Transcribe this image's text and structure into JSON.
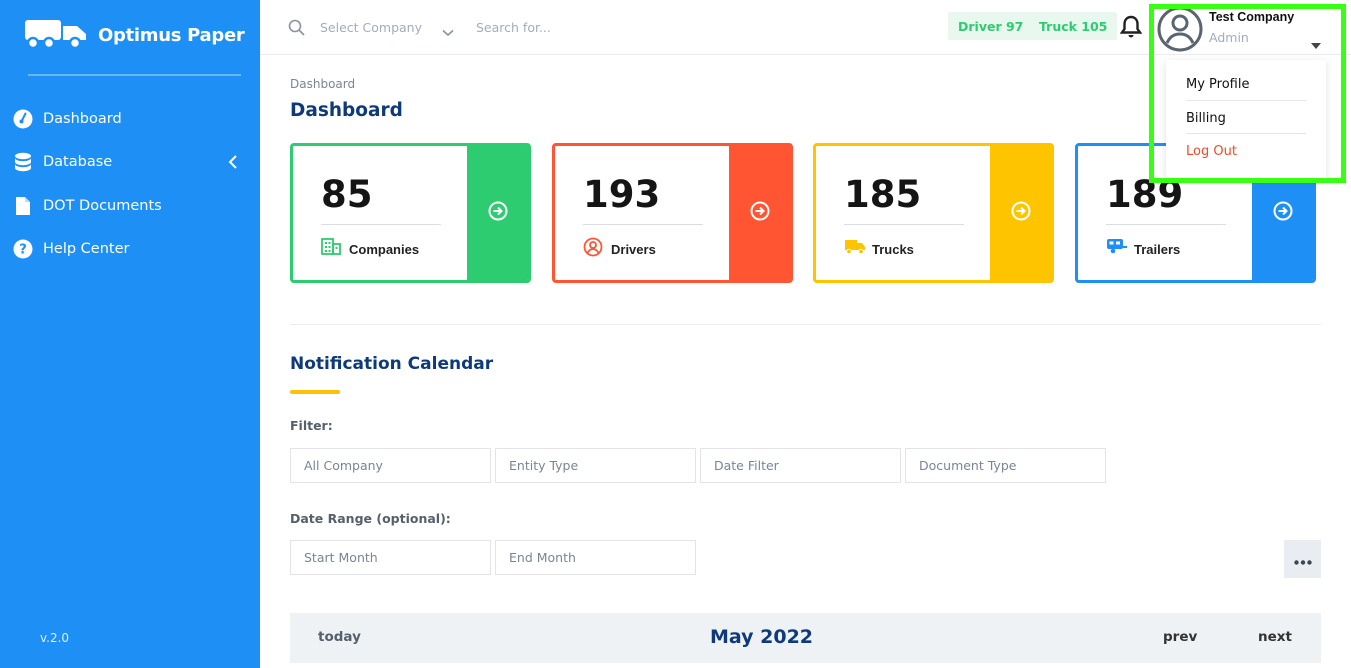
{
  "brand": {
    "name": "Optimus Paper",
    "version": "v.2.0"
  },
  "sidebar": {
    "items": [
      {
        "label": "Dashboard",
        "icon": "speedometer-icon"
      },
      {
        "label": "Database",
        "icon": "database-icon"
      },
      {
        "label": "DOT Documents",
        "icon": "document-icon"
      },
      {
        "label": "Help Center",
        "icon": "help-icon"
      }
    ]
  },
  "topbar": {
    "company_select_placeholder": "Select Company",
    "search_placeholder": "Search for...",
    "driver_pill": "Driver 97",
    "truck_pill": "Truck 105"
  },
  "user": {
    "company": "Test Company",
    "role": "Admin"
  },
  "user_menu": {
    "items": [
      "My Profile",
      "Billing",
      "Log Out"
    ]
  },
  "page": {
    "breadcrumb": "Dashboard",
    "title": "Dashboard"
  },
  "stats": [
    {
      "value": "85",
      "label": "Companies",
      "color": "#2ecc71"
    },
    {
      "value": "193",
      "label": "Drivers",
      "color": "#ff5533"
    },
    {
      "value": "185",
      "label": "Trucks",
      "color": "#ffc400"
    },
    {
      "value": "189",
      "label": "Trailers",
      "color": "#1e90f5"
    }
  ],
  "calendar_section": {
    "title": "Notification Calendar",
    "filter_label": "Filter:",
    "filters": [
      "All Company",
      "Entity Type",
      "Date Filter",
      "Document Type"
    ],
    "date_range_label": "Date Range (optional):",
    "date_fields": [
      "Start Month",
      "End Month"
    ],
    "toolbar": {
      "today": "today",
      "month": "May 2022",
      "prev": "prev",
      "next": "next"
    }
  },
  "colors": {
    "sidebar": "#1e90f5",
    "title": "#0f3a7a",
    "pill_text": "#2ecc71",
    "logout": "#f04a2a",
    "highlight": "#39ff14"
  }
}
